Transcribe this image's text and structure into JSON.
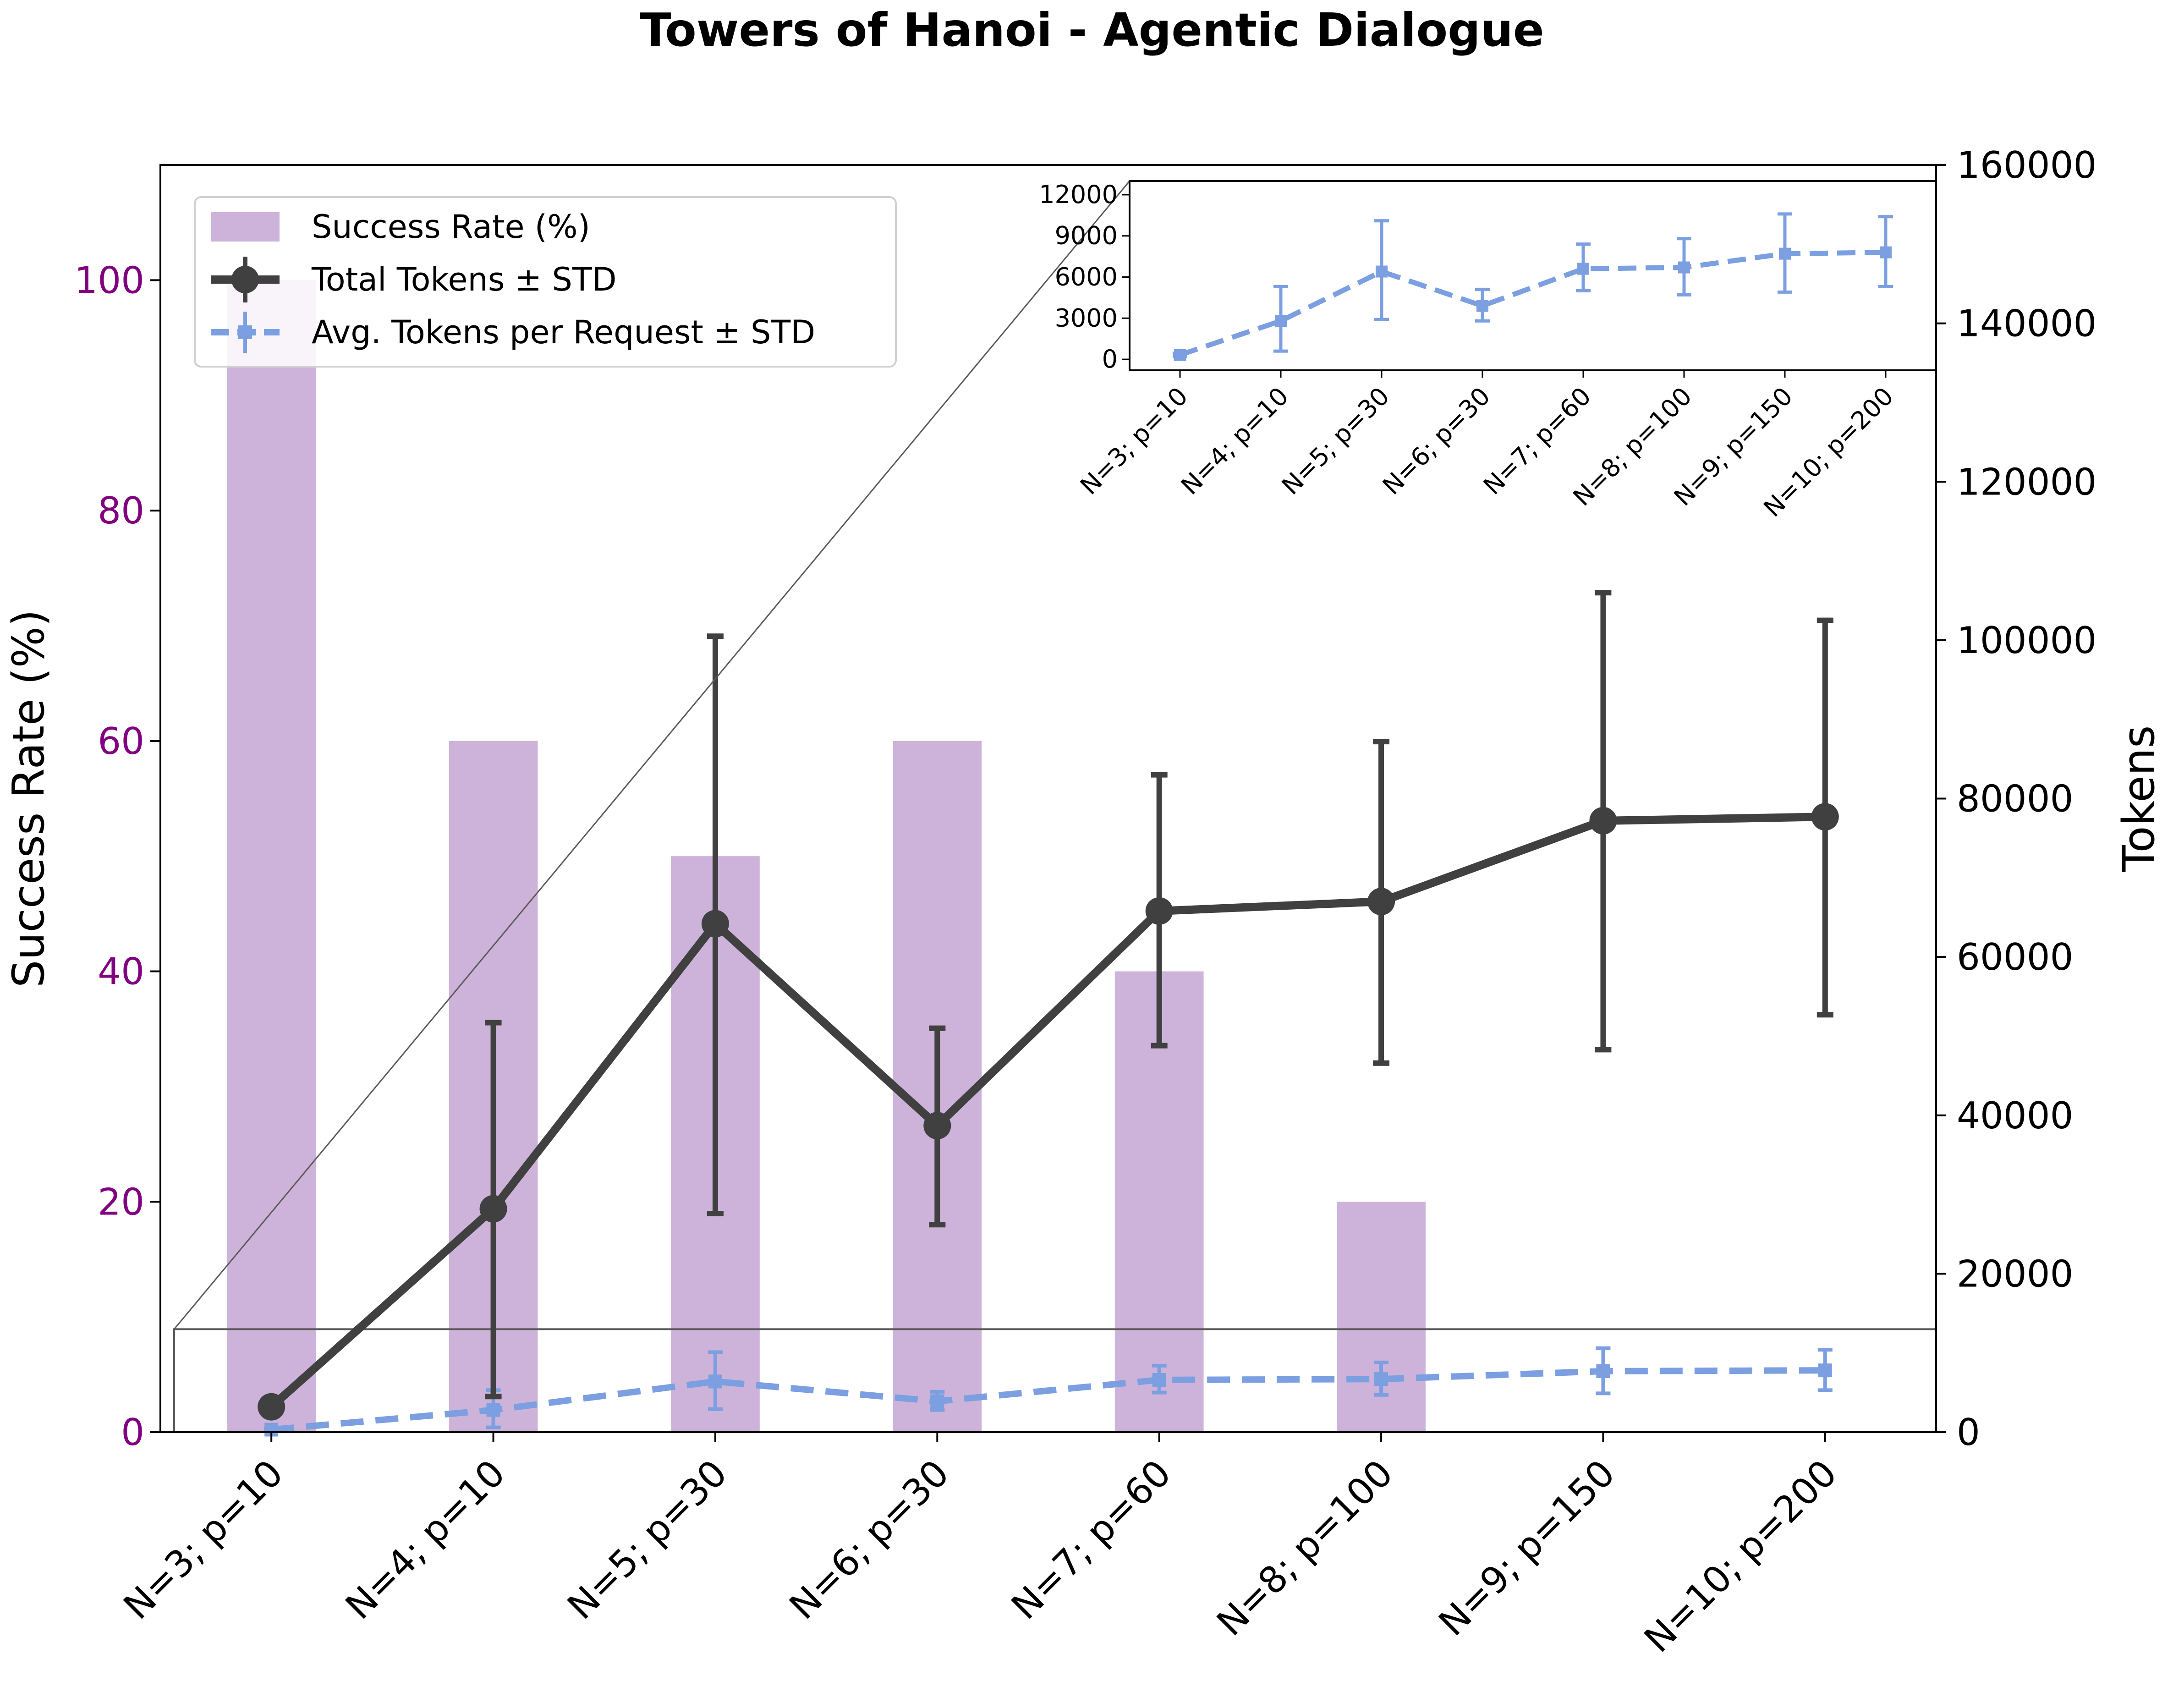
{
  "chart_data": {
    "type": "bar+line",
    "title": "Towers of Hanoi - Agentic Dialogue",
    "categories": [
      "N=3; p=10",
      "N=4; p=10",
      "N=5; p=30",
      "N=6; p=30",
      "N=7; p=60",
      "N=8; p=100",
      "N=9; p=150",
      "N=10; p=200"
    ],
    "left_axis": {
      "label": "Success Rate (%)",
      "ticks": [
        "0",
        "20",
        "40",
        "60",
        "80",
        "100"
      ],
      "tick_values": [
        0,
        20,
        40,
        60,
        80,
        100
      ],
      "ylim": [
        0,
        110
      ],
      "color": "#800080"
    },
    "right_axis": {
      "label": "Tokens",
      "ticks": [
        "0",
        "20000",
        "40000",
        "60000",
        "80000",
        "100000",
        "120000",
        "140000",
        "160000"
      ],
      "tick_values": [
        0,
        20000,
        40000,
        60000,
        80000,
        100000,
        120000,
        140000,
        160000
      ],
      "ylim": [
        0,
        160000
      ]
    },
    "series": [
      {
        "name": "Success Rate (%)",
        "kind": "bar",
        "axis": "left",
        "color": "#cdb3d9",
        "values": [
          100,
          60,
          50,
          60,
          40,
          20,
          0,
          0
        ]
      },
      {
        "name": "Total Tokens ± STD",
        "kind": "line",
        "axis": "right",
        "color": "#404040",
        "values": [
          3200,
          28200,
          64200,
          38700,
          65800,
          67000,
          77200,
          77700
        ],
        "err_low": [
          3200,
          4500,
          27600,
          26200,
          48800,
          46600,
          48300,
          52700
        ],
        "err_high": [
          3200,
          51700,
          100500,
          51000,
          83000,
          87200,
          106000,
          102500
        ]
      },
      {
        "name": "Avg. Tokens per Request ± STD",
        "kind": "line-dashed",
        "axis": "right",
        "color": "#7b9fe0",
        "values": [
          320,
          2800,
          6400,
          3900,
          6600,
          6700,
          7700,
          7800
        ],
        "err_low": [
          200,
          600,
          2900,
          2800,
          5000,
          4700,
          4900,
          5300
        ],
        "err_high": [
          440,
          5300,
          10100,
          5100,
          8400,
          8800,
          10600,
          10400
        ]
      }
    ],
    "inset": {
      "ticks": [
        "0",
        "3000",
        "6000",
        "9000",
        "12000"
      ],
      "tick_values": [
        0,
        3000,
        6000,
        9000,
        12000
      ],
      "ylim": [
        -800,
        13000
      ],
      "zoom_region": [
        0,
        13000
      ]
    },
    "legend_position": "upper-left"
  }
}
